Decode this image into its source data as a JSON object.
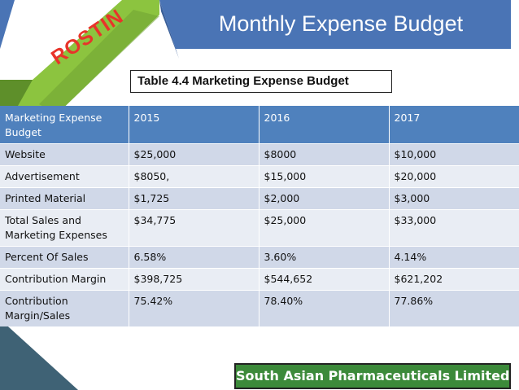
{
  "slide": {
    "title": "Monthly Expense Budget",
    "ribbon": "ROSTIN",
    "caption": "Table 4.4  Marketing Expense Budget",
    "footer": "South Asian Pharmaceuticals Limited"
  },
  "colors": {
    "title_banner": "#4a74b5",
    "ribbon_green": "#8cc43f",
    "ribbon_text": "#e8342a",
    "header_blue": "#4f81bd",
    "row_dark": "#d0d8e8",
    "row_light": "#e9edf4",
    "footer_green": "#3c8a3a",
    "triangle_teal": "#3f6275"
  },
  "table": {
    "headers": [
      "Marketing Expense Budget",
      "2015",
      "2016",
      "2017"
    ],
    "rows": [
      [
        "Website",
        "$25,000",
        "$8000",
        "$10,000"
      ],
      [
        "Advertisement",
        "$8050,",
        "$15,000",
        "$20,000"
      ],
      [
        "Printed Material",
        "$1,725",
        "$2,000",
        "$3,000"
      ],
      [
        "Total Sales and Marketing Expenses",
        "$34,775",
        "$25,000",
        "$33,000"
      ],
      [
        "Percent Of Sales",
        "6.58%",
        "3.60%",
        "4.14%"
      ],
      [
        "Contribution Margin",
        "$398,725",
        "$544,652",
        "$621,202"
      ],
      [
        "Contribution Margin/Sales",
        "75.42%",
        "78.40%",
        "77.86%"
      ]
    ]
  }
}
